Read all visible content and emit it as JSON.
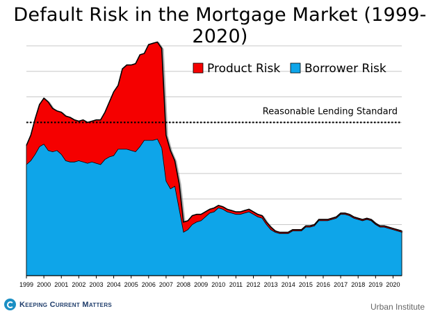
{
  "chart_data": {
    "type": "area",
    "title": "Default Risk in the Mortgage Market (1999-2020)",
    "xlabel": "",
    "ylabel": "",
    "x_range": [
      1999,
      2020.5
    ],
    "ylim": [
      0,
      18
    ],
    "grid": true,
    "legend_position": "top-right",
    "x_tick_labels": [
      "1999",
      "2000",
      "2001",
      "2002",
      "2003",
      "2004",
      "2005",
      "2006",
      "2007",
      "2008",
      "2009",
      "2010",
      "2011",
      "2012",
      "2013",
      "2014",
      "2015",
      "2016",
      "2017",
      "2018",
      "2019",
      "2020"
    ],
    "reference_line": {
      "label": "Reasonable Lending Standard",
      "value": 12.0
    },
    "x": [
      1999.0,
      1999.25,
      1999.5,
      1999.75,
      2000.0,
      2000.25,
      2000.5,
      2000.75,
      2001.0,
      2001.25,
      2001.5,
      2001.75,
      2002.0,
      2002.25,
      2002.5,
      2002.75,
      2003.0,
      2003.25,
      2003.5,
      2003.75,
      2004.0,
      2004.25,
      2004.5,
      2004.75,
      2005.0,
      2005.25,
      2005.5,
      2005.75,
      2006.0,
      2006.25,
      2006.5,
      2006.75,
      2007.0,
      2007.25,
      2007.5,
      2007.75,
      2008.0,
      2008.25,
      2008.5,
      2008.75,
      2009.0,
      2009.25,
      2009.5,
      2009.75,
      2010.0,
      2010.25,
      2010.5,
      2010.75,
      2011.0,
      2011.25,
      2011.5,
      2011.75,
      2012.0,
      2012.25,
      2012.5,
      2012.75,
      2013.0,
      2013.25,
      2013.5,
      2013.75,
      2014.0,
      2014.25,
      2014.5,
      2014.75,
      2015.0,
      2015.25,
      2015.5,
      2015.75,
      2016.0,
      2016.25,
      2016.5,
      2016.75,
      2017.0,
      2017.25,
      2017.5,
      2017.75,
      2018.0,
      2018.25,
      2018.5,
      2018.75,
      2019.0,
      2019.25,
      2019.5,
      2019.75,
      2020.0,
      2020.25,
      2020.5
    ],
    "series": [
      {
        "name": "Borrower Risk",
        "color": "#0ea5e9",
        "values": [
          8.7,
          9.0,
          9.5,
          10.1,
          10.3,
          9.8,
          9.7,
          9.8,
          9.5,
          9.0,
          8.9,
          8.9,
          9.0,
          8.9,
          8.8,
          8.9,
          8.8,
          8.7,
          9.1,
          9.3,
          9.4,
          9.9,
          9.9,
          9.9,
          9.8,
          9.7,
          10.1,
          10.6,
          10.6,
          10.6,
          10.7,
          10.0,
          7.4,
          6.8,
          7.0,
          5.2,
          3.4,
          3.6,
          4.0,
          4.2,
          4.3,
          4.6,
          4.9,
          5.0,
          5.3,
          5.2,
          5.0,
          4.9,
          4.8,
          4.8,
          4.9,
          5.0,
          4.8,
          4.6,
          4.5,
          4.0,
          3.6,
          3.4,
          3.3,
          3.3,
          3.3,
          3.5,
          3.5,
          3.5,
          3.8,
          3.8,
          3.9,
          4.3,
          4.3,
          4.3,
          4.4,
          4.5,
          4.8,
          4.8,
          4.7,
          4.5,
          4.4,
          4.3,
          4.4,
          4.3,
          4.0,
          3.8,
          3.8,
          3.7,
          3.6,
          3.5,
          3.4
        ]
      },
      {
        "name": "Product Risk",
        "color": "#f50000",
        "values": [
          1.5,
          2.0,
          2.8,
          3.3,
          3.6,
          3.8,
          3.4,
          3.1,
          3.3,
          3.5,
          3.5,
          3.3,
          3.1,
          3.3,
          3.2,
          3.2,
          3.4,
          3.5,
          3.7,
          4.3,
          5.0,
          5.0,
          6.3,
          6.6,
          6.7,
          6.9,
          7.2,
          6.8,
          7.5,
          7.6,
          7.6,
          7.8,
          3.6,
          3.0,
          2.0,
          2.0,
          0.8,
          0.7,
          0.7,
          0.6,
          0.5,
          0.4,
          0.3,
          0.3,
          0.2,
          0.2,
          0.2,
          0.2,
          0.2,
          0.2,
          0.2,
          0.2,
          0.2,
          0.2,
          0.2,
          0.2,
          0.2,
          0.1,
          0.1,
          0.1,
          0.1,
          0.1,
          0.1,
          0.1,
          0.1,
          0.1,
          0.1,
          0.1,
          0.1,
          0.1,
          0.1,
          0.1,
          0.1,
          0.1,
          0.1,
          0.1,
          0.1,
          0.1,
          0.1,
          0.1,
          0.1,
          0.1,
          0.1,
          0.1,
          0.1,
          0.1,
          0.1
        ]
      }
    ]
  },
  "footer": {
    "logo_text": "Keeping Current Matters",
    "source": "Urban Institute"
  }
}
